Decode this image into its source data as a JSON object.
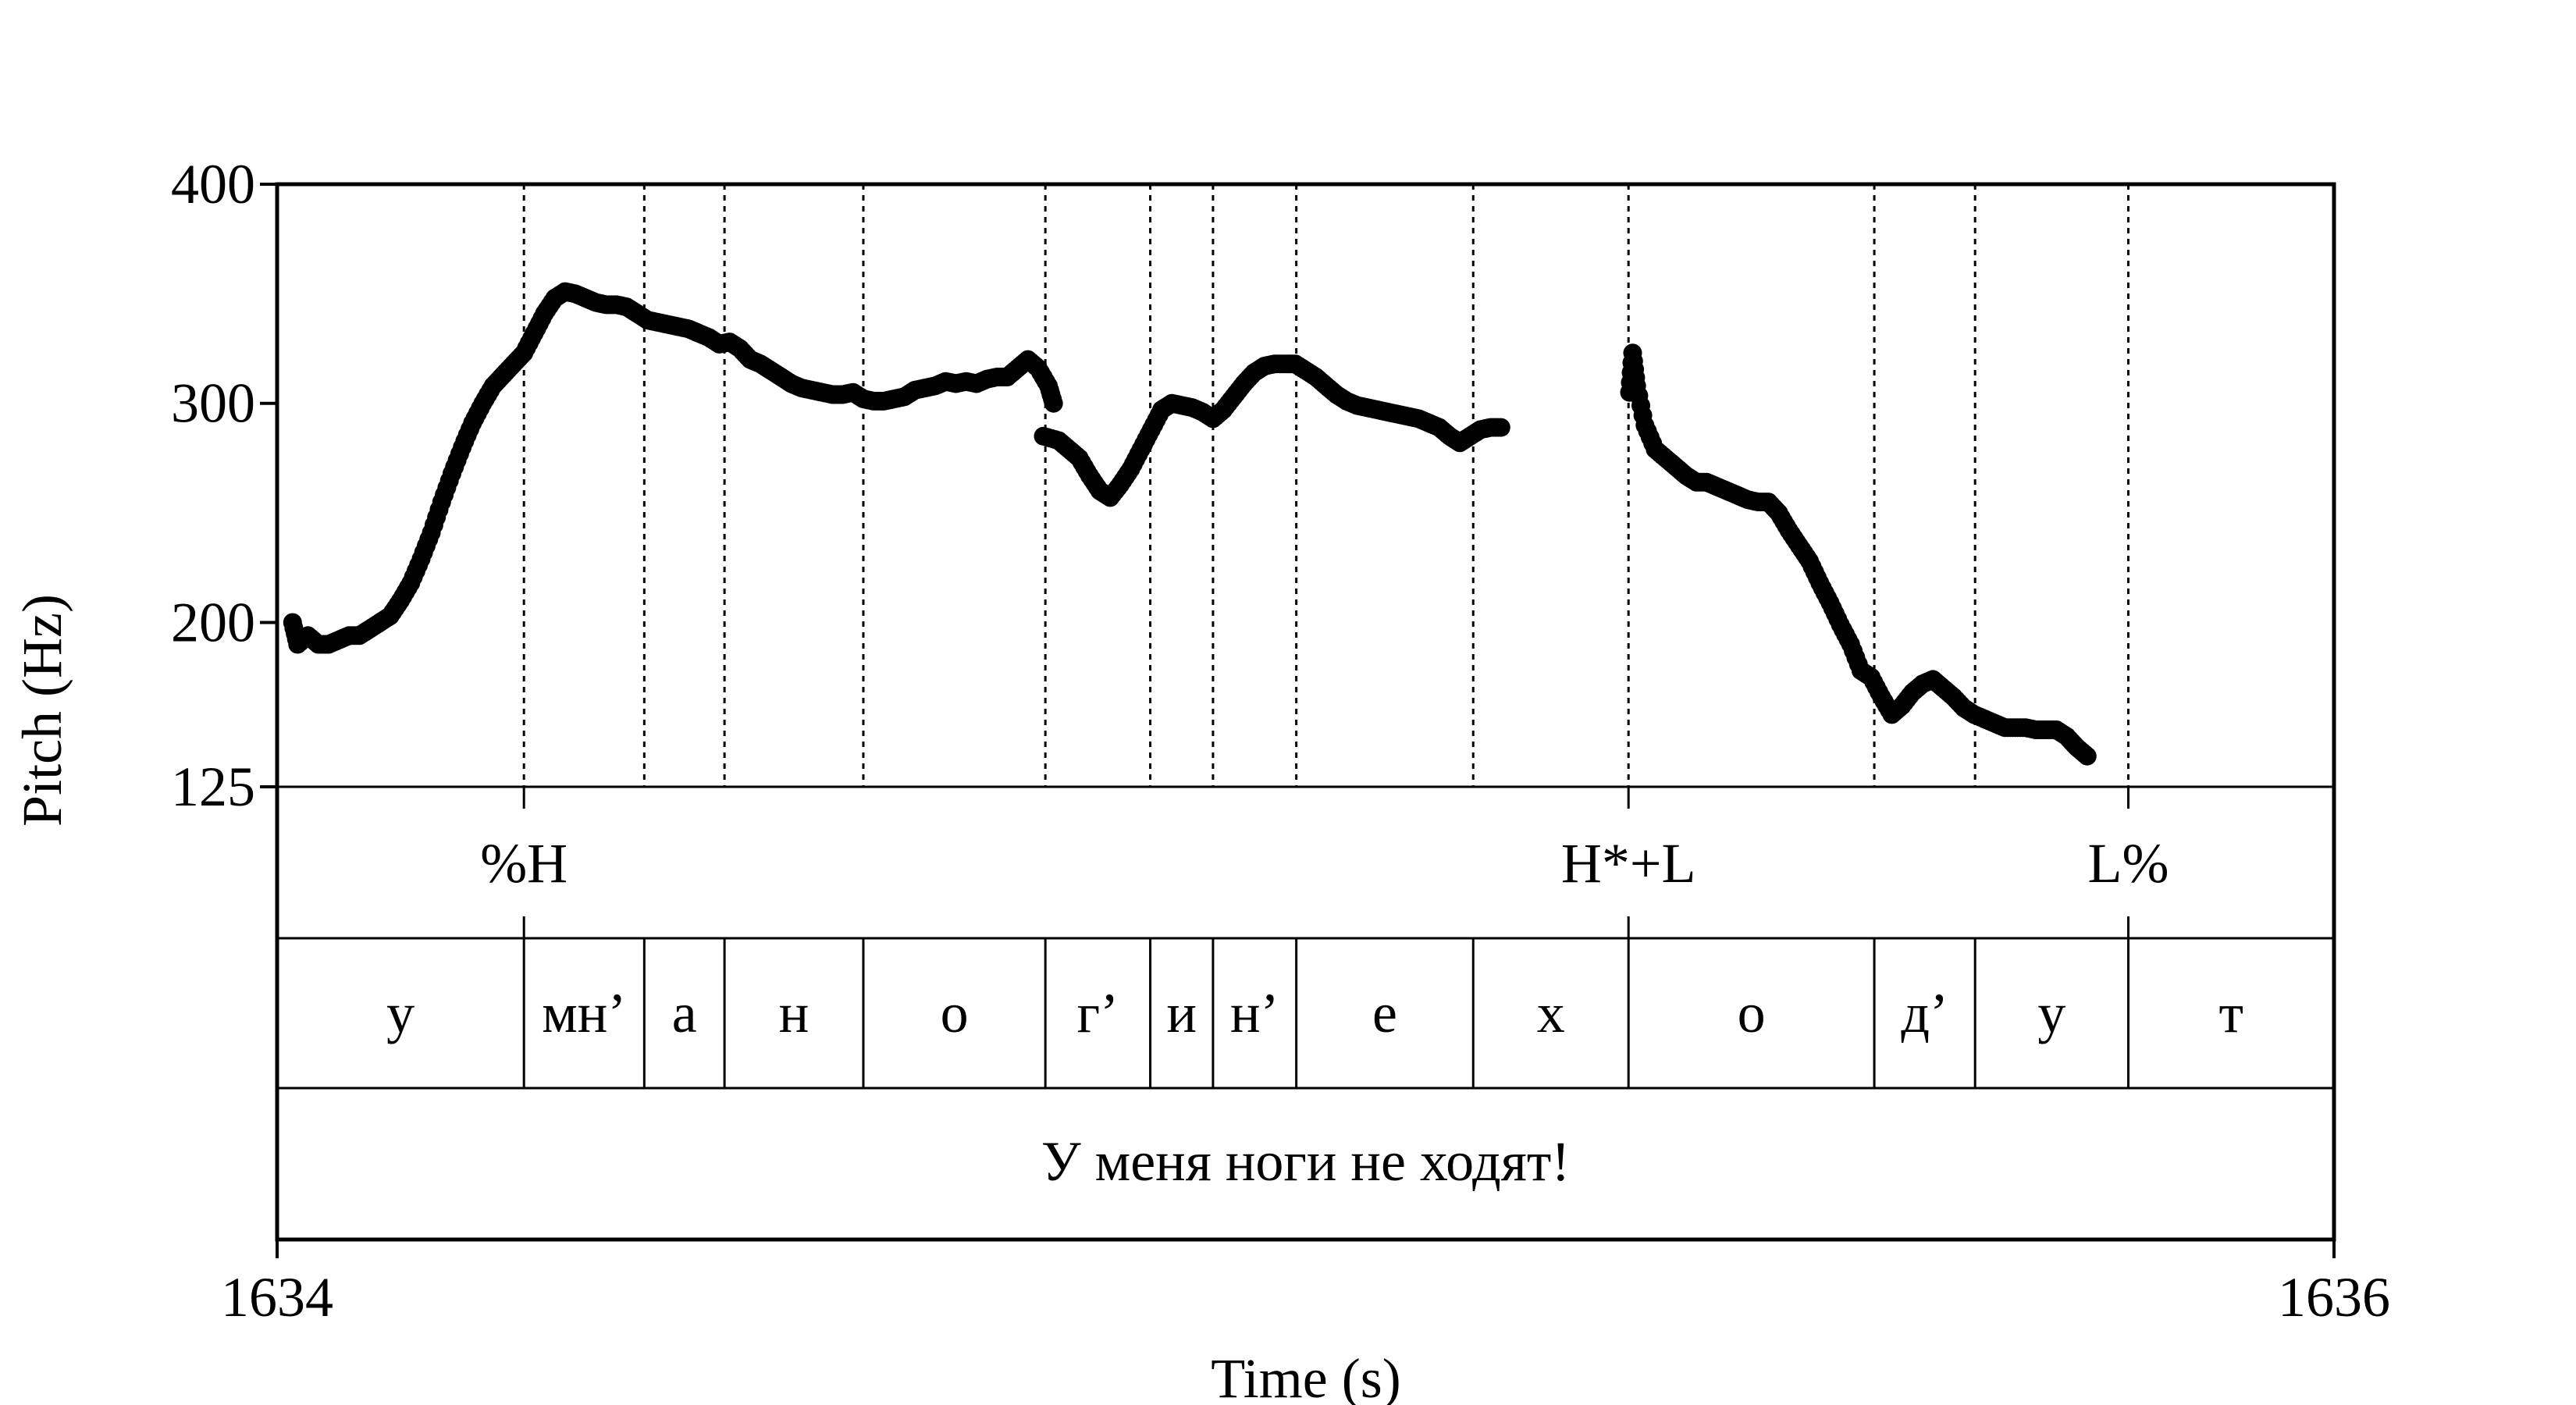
{
  "chart_data": {
    "type": "scatter",
    "xlabel": "Time (s)",
    "ylabel": "Pitch (Hz)",
    "xlim": [
      1634,
      1636
    ],
    "ylim": [
      125,
      400
    ],
    "x_ticks": [
      "1634",
      "1636"
    ],
    "y_ticks": [
      {
        "value": 400,
        "label": "400"
      },
      {
        "value": 300,
        "label": "300"
      },
      {
        "value": 200,
        "label": "200"
      },
      {
        "value": 125,
        "label": "125"
      }
    ],
    "grid": false,
    "boundaries": [
      1634.24,
      1634.357,
      1634.435,
      1634.57,
      1634.747,
      1634.849,
      1634.91,
      1634.991,
      1635.163,
      1635.314,
      1635.553,
      1635.651,
      1635.8
    ],
    "pitch_segments": [
      [
        [
          1634.015,
          200
        ],
        [
          1634.02,
          190
        ],
        [
          1634.03,
          194
        ],
        [
          1634.04,
          190
        ],
        [
          1634.05,
          190
        ],
        [
          1634.06,
          192
        ],
        [
          1634.07,
          194
        ],
        [
          1634.08,
          194
        ],
        [
          1634.09,
          197
        ],
        [
          1634.1,
          200
        ],
        [
          1634.11,
          203
        ],
        [
          1634.12,
          210
        ],
        [
          1634.13,
          218
        ],
        [
          1634.14,
          229
        ],
        [
          1634.15,
          241
        ],
        [
          1634.16,
          255
        ],
        [
          1634.17,
          268
        ],
        [
          1634.18,
          280
        ],
        [
          1634.19,
          291
        ],
        [
          1634.2,
          300
        ],
        [
          1634.21,
          308
        ],
        [
          1634.22,
          313
        ],
        [
          1634.23,
          318
        ],
        [
          1634.24,
          323
        ],
        [
          1634.25,
          332
        ],
        [
          1634.26,
          341
        ],
        [
          1634.27,
          348
        ],
        [
          1634.28,
          351
        ],
        [
          1634.29,
          350
        ],
        [
          1634.3,
          348
        ],
        [
          1634.31,
          346
        ],
        [
          1634.32,
          345
        ],
        [
          1634.33,
          345
        ],
        [
          1634.34,
          344
        ],
        [
          1634.35,
          341
        ],
        [
          1634.36,
          338
        ],
        [
          1634.37,
          337
        ],
        [
          1634.38,
          336
        ],
        [
          1634.39,
          335
        ],
        [
          1634.4,
          334
        ],
        [
          1634.41,
          332
        ],
        [
          1634.42,
          330
        ],
        [
          1634.43,
          327
        ],
        [
          1634.44,
          328
        ],
        [
          1634.45,
          325
        ],
        [
          1634.46,
          320
        ],
        [
          1634.47,
          318
        ],
        [
          1634.48,
          315
        ],
        [
          1634.49,
          312
        ],
        [
          1634.5,
          309
        ],
        [
          1634.51,
          307
        ],
        [
          1634.52,
          306
        ],
        [
          1634.53,
          305
        ],
        [
          1634.54,
          304
        ],
        [
          1634.55,
          304
        ],
        [
          1634.56,
          305
        ],
        [
          1634.57,
          302
        ],
        [
          1634.58,
          301
        ],
        [
          1634.59,
          301
        ],
        [
          1634.6,
          302
        ],
        [
          1634.61,
          303
        ],
        [
          1634.62,
          306
        ],
        [
          1634.63,
          307
        ],
        [
          1634.64,
          308
        ],
        [
          1634.65,
          310
        ],
        [
          1634.66,
          309
        ],
        [
          1634.67,
          310
        ],
        [
          1634.68,
          309
        ],
        [
          1634.69,
          311
        ],
        [
          1634.7,
          312
        ],
        [
          1634.71,
          312
        ],
        [
          1634.72,
          316
        ],
        [
          1634.73,
          320
        ],
        [
          1634.74,
          316
        ],
        [
          1634.75,
          308
        ],
        [
          1634.755,
          300
        ]
      ],
      [
        [
          1634.745,
          285
        ],
        [
          1634.76,
          283
        ],
        [
          1634.77,
          279
        ],
        [
          1634.78,
          275
        ],
        [
          1634.79,
          267
        ],
        [
          1634.8,
          260
        ],
        [
          1634.81,
          257
        ],
        [
          1634.82,
          263
        ],
        [
          1634.83,
          270
        ],
        [
          1634.84,
          279
        ],
        [
          1634.85,
          288
        ],
        [
          1634.86,
          297
        ],
        [
          1634.87,
          300
        ],
        [
          1634.88,
          299
        ],
        [
          1634.89,
          298
        ],
        [
          1634.9,
          296
        ],
        [
          1634.91,
          293
        ],
        [
          1634.92,
          297
        ],
        [
          1634.93,
          303
        ],
        [
          1634.94,
          309
        ],
        [
          1634.95,
          314
        ],
        [
          1634.96,
          317
        ],
        [
          1634.97,
          318
        ],
        [
          1634.98,
          318
        ],
        [
          1634.99,
          318
        ],
        [
          1635.0,
          315
        ],
        [
          1635.01,
          312
        ],
        [
          1635.02,
          308
        ],
        [
          1635.03,
          304
        ],
        [
          1635.04,
          301
        ],
        [
          1635.05,
          299
        ],
        [
          1635.06,
          298
        ],
        [
          1635.07,
          297
        ],
        [
          1635.08,
          296
        ],
        [
          1635.09,
          295
        ],
        [
          1635.1,
          294
        ],
        [
          1635.11,
          293
        ],
        [
          1635.12,
          291
        ],
        [
          1635.13,
          289
        ],
        [
          1635.14,
          285
        ],
        [
          1635.15,
          282
        ],
        [
          1635.16,
          285
        ],
        [
          1635.17,
          288
        ],
        [
          1635.18,
          289
        ],
        [
          1635.19,
          289
        ]
      ],
      [
        [
          1635.315,
          305
        ],
        [
          1635.318,
          323
        ],
        [
          1635.322,
          308
        ],
        [
          1635.33,
          290
        ],
        [
          1635.34,
          279
        ],
        [
          1635.35,
          275
        ],
        [
          1635.36,
          271
        ],
        [
          1635.37,
          267
        ],
        [
          1635.38,
          264
        ],
        [
          1635.39,
          264
        ],
        [
          1635.4,
          262
        ],
        [
          1635.41,
          260
        ],
        [
          1635.42,
          258
        ],
        [
          1635.43,
          256
        ],
        [
          1635.44,
          255
        ],
        [
          1635.45,
          255
        ],
        [
          1635.46,
          250
        ],
        [
          1635.47,
          242
        ],
        [
          1635.48,
          235
        ],
        [
          1635.49,
          228
        ],
        [
          1635.5,
          218
        ],
        [
          1635.51,
          209
        ],
        [
          1635.52,
          199
        ],
        [
          1635.53,
          190
        ],
        [
          1635.54,
          178
        ],
        [
          1635.55,
          175
        ],
        [
          1635.56,
          166
        ],
        [
          1635.57,
          158
        ],
        [
          1635.58,
          162
        ],
        [
          1635.59,
          168
        ],
        [
          1635.6,
          172
        ],
        [
          1635.61,
          174
        ],
        [
          1635.62,
          170
        ],
        [
          1635.63,
          166
        ],
        [
          1635.64,
          161
        ],
        [
          1635.65,
          158
        ],
        [
          1635.66,
          156
        ],
        [
          1635.67,
          154
        ],
        [
          1635.68,
          152
        ],
        [
          1635.69,
          152
        ],
        [
          1635.7,
          152
        ],
        [
          1635.71,
          151
        ],
        [
          1635.72,
          151
        ],
        [
          1635.73,
          151
        ],
        [
          1635.74,
          148
        ],
        [
          1635.75,
          143
        ],
        [
          1635.76,
          139
        ]
      ]
    ],
    "tiers": {
      "tones": [
        {
          "label": "%H",
          "t": 1634.24
        },
        {
          "label": "H*+L",
          "t": 1635.314
        },
        {
          "label": "L%",
          "t": 1635.8
        }
      ],
      "segments": [
        {
          "label": "у",
          "start": 1634.0,
          "end": 1634.24
        },
        {
          "label": "мн’",
          "start": 1634.24,
          "end": 1634.357
        },
        {
          "label": "а",
          "start": 1634.357,
          "end": 1634.435
        },
        {
          "label": "н",
          "start": 1634.435,
          "end": 1634.57
        },
        {
          "label": "о",
          "start": 1634.57,
          "end": 1634.747
        },
        {
          "label": "г’",
          "start": 1634.747,
          "end": 1634.849
        },
        {
          "label": "и",
          "start": 1634.849,
          "end": 1634.91
        },
        {
          "label": "н’",
          "start": 1634.91,
          "end": 1634.991
        },
        {
          "label": "е",
          "start": 1634.991,
          "end": 1635.163
        },
        {
          "label": "х",
          "start": 1635.163,
          "end": 1635.314
        },
        {
          "label": "о",
          "start": 1635.314,
          "end": 1635.553
        },
        {
          "label": "д’",
          "start": 1635.553,
          "end": 1635.651
        },
        {
          "label": "у",
          "start": 1635.651,
          "end": 1635.8
        },
        {
          "label": "т",
          "start": 1635.8,
          "end": 1636.0
        }
      ],
      "sentence": "У меня ноги не ходят!"
    }
  }
}
